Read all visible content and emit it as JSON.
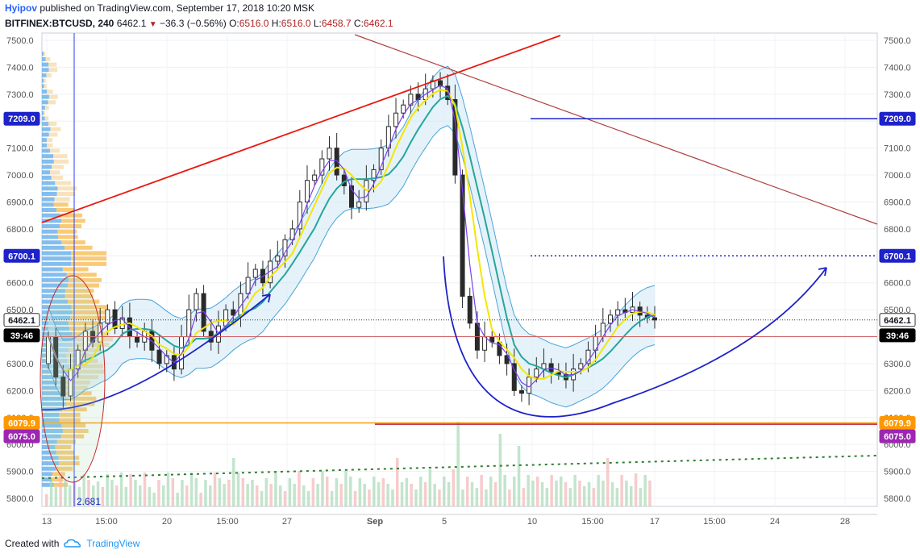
{
  "header": {
    "author": "Hyipov",
    "published_text": "published on TradingView.com, September 17, 2018 10:20 MSK",
    "symbol": "BITFINEX:BTCUSD, 240",
    "last": "6462.1",
    "change": "−36.3 (−0.56%)",
    "o_label": "O:",
    "o_value": "6516.0",
    "h_label": "H:",
    "h_value": "6516.0",
    "l_label": "L:",
    "l_value": "6458.7",
    "c_label": "C:",
    "c_value": "6462.1"
  },
  "footer": {
    "created_with": "Created with",
    "brand": "TradingView"
  },
  "chart_data": {
    "type": "candlestick",
    "symbol": "BITFINEX:BTCUSD",
    "interval": "240",
    "ylim": [
      5760,
      7520
    ],
    "y_ticks": [
      5800,
      5900,
      6000,
      6100,
      6200,
      6300,
      6400,
      6500,
      6600,
      6700,
      6800,
      6900,
      7000,
      7100,
      7200,
      7300,
      7400,
      7500
    ],
    "x_ticks": [
      "13",
      "15:00",
      "20",
      "15:00",
      "27",
      "Sep",
      "5",
      "10",
      "15:00",
      "17",
      "15:00",
      "24",
      "28"
    ],
    "price_labels_left": [
      "6079.9",
      "6075.0",
      "6700.1",
      "7209.0",
      "6462.1",
      "39:46"
    ],
    "price_labels_right": [
      "7209.0",
      "6700.1",
      "6462.1",
      "39:46",
      "6079.9",
      "6075.0"
    ],
    "current_price": 6462.1,
    "countdown": "39:46",
    "volume_readout": "2.681",
    "horizontal_levels": [
      {
        "price": 7209.0,
        "color": "#1e22c8",
        "style": "solid"
      },
      {
        "price": 6700.1,
        "color": "#1e22c8",
        "style": "dotted"
      },
      {
        "price": 6079.9,
        "color": "#ff9800",
        "style": "solid"
      },
      {
        "price": 6075.0,
        "color": "#9c27b0",
        "style": "solid"
      }
    ],
    "closes_approx": [
      6400,
      6250,
      6180,
      6280,
      6350,
      6420,
      6380,
      6450,
      6500,
      6430,
      6470,
      6400,
      6380,
      6420,
      6350,
      6300,
      6330,
      6280,
      6400,
      6500,
      6560,
      6420,
      6380,
      6440,
      6500,
      6480,
      6560,
      6620,
      6650,
      6600,
      6680,
      6700,
      6760,
      6800,
      6900,
      6980,
      7000,
      7060,
      7100,
      7000,
      6960,
      6880,
      6900,
      6980,
      7020,
      7100,
      7180,
      7230,
      7260,
      7300,
      7280,
      7320,
      7350,
      7330,
      7280,
      7000,
      6550,
      6450,
      6350,
      6400,
      6380,
      6330,
      6300,
      6200,
      6190,
      6250,
      6280,
      6300,
      6270,
      6260,
      6240,
      6280,
      6300,
      6350,
      6400,
      6450,
      6480,
      6500,
      6490,
      6510,
      6480,
      6470,
      6462
    ]
  }
}
